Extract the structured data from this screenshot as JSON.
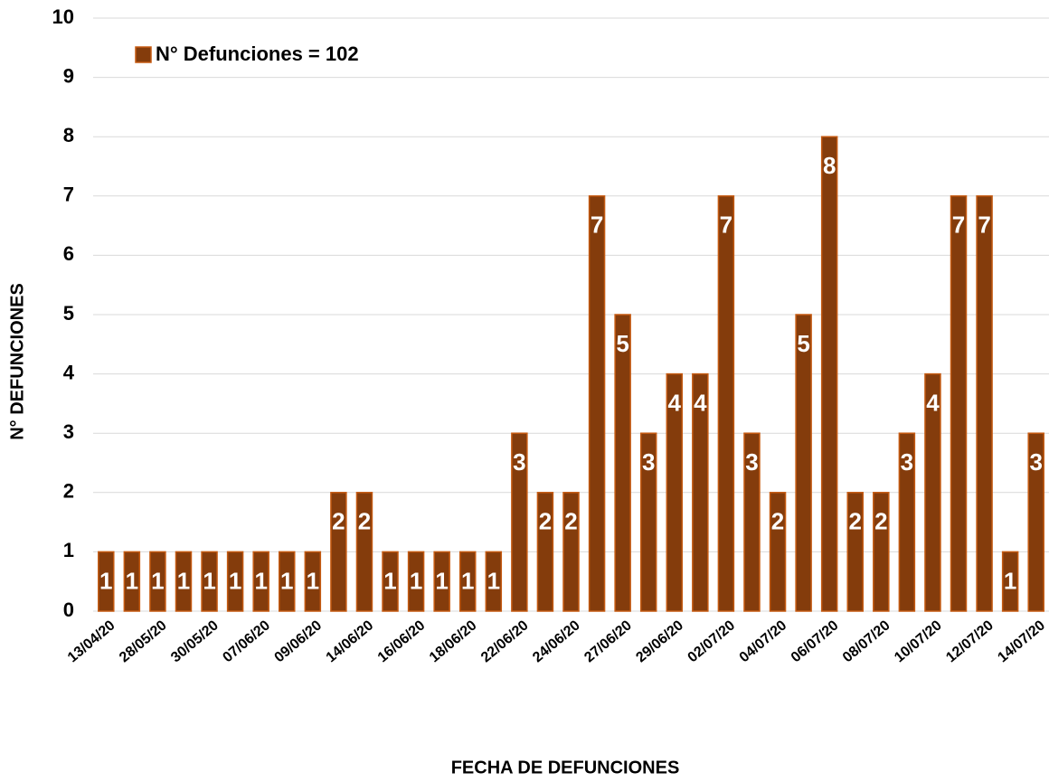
{
  "chart_data": {
    "type": "bar",
    "xlabel": "FECHA DE DEFUNCIONES",
    "ylabel": "N° DEFUNCIONES",
    "categories": [
      "13/04/20",
      null,
      "28/05/20",
      null,
      "30/05/20",
      null,
      "07/06/20",
      null,
      "09/06/20",
      null,
      "14/06/20",
      null,
      "16/06/20",
      null,
      "18/06/20",
      null,
      "22/06/20",
      null,
      "24/06/20",
      null,
      "27/06/20",
      null,
      "29/06/20",
      null,
      "02/07/20",
      null,
      "04/07/20",
      null,
      "06/07/20",
      null,
      "08/07/20",
      null,
      "10/07/20",
      null,
      "12/07/20",
      null,
      "14/07/20"
    ],
    "series": [
      {
        "name": "N° Defunciones = 102",
        "color": "#843c0c",
        "values": [
          1,
          1,
          1,
          1,
          1,
          1,
          1,
          1,
          1,
          2,
          2,
          1,
          1,
          1,
          1,
          1,
          3,
          2,
          2,
          7,
          5,
          3,
          4,
          4,
          7,
          3,
          2,
          5,
          8,
          2,
          2,
          3,
          4,
          7,
          7,
          1,
          3
        ]
      }
    ],
    "ylim": [
      0,
      10
    ],
    "yticks": [
      0,
      1,
      2,
      3,
      4,
      5,
      6,
      7,
      8,
      9,
      10
    ],
    "grid": true,
    "legend": "upper left"
  }
}
